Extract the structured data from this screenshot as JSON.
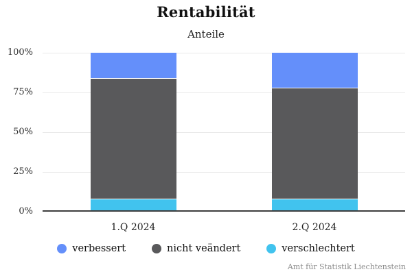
{
  "chart": {
    "title": "Rentabilität",
    "subtitle": "Anteile",
    "source": "Amt für Statistik Liechtenstein"
  },
  "chart_data": {
    "type": "bar",
    "stacked": true,
    "title": "Rentabilität",
    "subtitle": "Anteile",
    "xlabel": "",
    "ylabel": "",
    "categories": [
      "1.Q 2024",
      "2.Q 2024"
    ],
    "series": [
      {
        "name": "verbessert",
        "color": "#648ffa",
        "values": [
          16,
          22
        ]
      },
      {
        "name": "nicht veändert",
        "color": "#59595b",
        "values": [
          76,
          70
        ]
      },
      {
        "name": "verschlechtert",
        "color": "#41c3ee",
        "values": [
          8,
          8
        ]
      }
    ],
    "ylim": [
      0,
      100
    ],
    "yticks": [
      "0%",
      "25%",
      "50%",
      "75%",
      "100%"
    ],
    "grid": true,
    "gridline_color": "#e8e8e8",
    "axis_line_color": "#3d3d3d",
    "legend_position": "bottom"
  }
}
